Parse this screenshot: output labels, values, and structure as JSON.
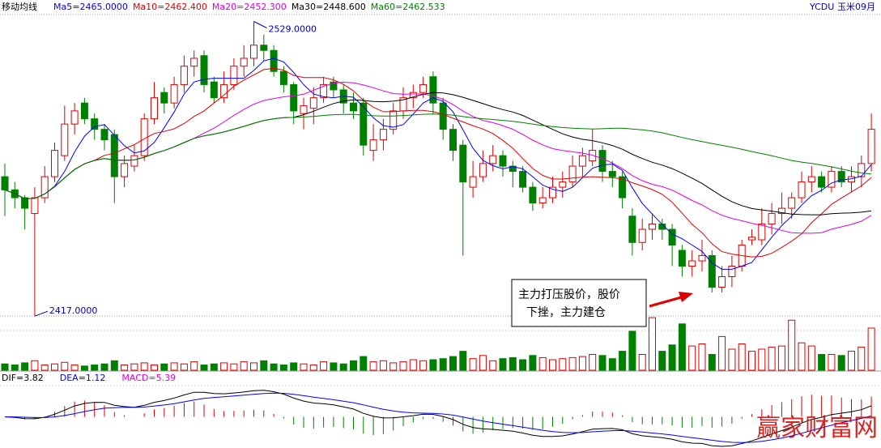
{
  "chart_data": {
    "type": "candlestick",
    "indicator_title": "移动均线",
    "ma_labels": [
      "Ma5=2465.0000",
      "Ma10=2462.400",
      "Ma20=2452.300",
      "Ma30=2448.600",
      "Ma60=2462.533"
    ],
    "ma_colors": [
      "#0000ff",
      "#e00000",
      "#e000e0",
      "#000000",
      "#008000"
    ],
    "symbol": "YCDU",
    "contract": "玉米09月",
    "high_label": "2529.0000",
    "low_label": "2417.0000",
    "annotation": [
      "主力打压股价，股价",
      "下挫，主力建仓"
    ],
    "macd_labels": [
      "DIF=3.82",
      "DEA=1.12",
      "MACD=5.39"
    ],
    "macd_colors": [
      "#000000",
      "#0000ff",
      "#e000e0"
    ],
    "watermark": "赢家财富网",
    "up_color": "#e00000",
    "down_color": "#008000",
    "ylim": [
      2414.6,
      2531
    ],
    "volume_ylim": [
      0,
      100
    ],
    "candles": [
      [
        2470,
        2475,
        2455,
        2465
      ],
      [
        2465,
        2468,
        2458,
        2462
      ],
      [
        2462,
        2463,
        2450,
        2458
      ],
      [
        2456,
        2466,
        2417,
        2462
      ],
      [
        2462,
        2474,
        2460,
        2470
      ],
      [
        2470,
        2483,
        2468,
        2480
      ],
      [
        2478,
        2497,
        2476,
        2490
      ],
      [
        2490,
        2498,
        2486,
        2495
      ],
      [
        2498,
        2500,
        2490,
        2492
      ],
      [
        2492,
        2494,
        2484,
        2488
      ],
      [
        2488,
        2490,
        2480,
        2484
      ],
      [
        2486,
        2488,
        2460,
        2470
      ],
      [
        2470,
        2478,
        2466,
        2475
      ],
      [
        2474,
        2482,
        2472,
        2478
      ],
      [
        2478,
        2494,
        2476,
        2492
      ],
      [
        2492,
        2506,
        2490,
        2500
      ],
      [
        2502,
        2504,
        2494,
        2498
      ],
      [
        2498,
        2508,
        2496,
        2505
      ],
      [
        2505,
        2516,
        2502,
        2512
      ],
      [
        2512,
        2518,
        2508,
        2515
      ],
      [
        2516,
        2518,
        2502,
        2505
      ],
      [
        2506,
        2508,
        2498,
        2500
      ],
      [
        2500,
        2510,
        2498,
        2505
      ],
      [
        2505,
        2515,
        2503,
        2512
      ],
      [
        2512,
        2520,
        2508,
        2515
      ],
      [
        2515,
        2529,
        2512,
        2520
      ],
      [
        2520,
        2524,
        2514,
        2518
      ],
      [
        2518,
        2520,
        2508,
        2510
      ],
      [
        2510,
        2512,
        2502,
        2505
      ],
      [
        2505,
        2506,
        2490,
        2495
      ],
      [
        2494,
        2500,
        2488,
        2497
      ],
      [
        2496,
        2504,
        2490,
        2500
      ],
      [
        2500,
        2508,
        2498,
        2505
      ],
      [
        2506,
        2508,
        2500,
        2503
      ],
      [
        2503,
        2505,
        2494,
        2498
      ],
      [
        2498,
        2502,
        2492,
        2495
      ],
      [
        2498,
        2500,
        2478,
        2482
      ],
      [
        2480,
        2490,
        2476,
        2484
      ],
      [
        2484,
        2492,
        2480,
        2488
      ],
      [
        2488,
        2498,
        2486,
        2495
      ],
      [
        2495,
        2504,
        2492,
        2500
      ],
      [
        2500,
        2505,
        2496,
        2502
      ],
      [
        2502,
        2508,
        2500,
        2505
      ],
      [
        2508,
        2510,
        2494,
        2498
      ],
      [
        2498,
        2500,
        2484,
        2488
      ],
      [
        2488,
        2490,
        2476,
        2480
      ],
      [
        2482,
        2484,
        2440,
        2468
      ],
      [
        2466,
        2476,
        2462,
        2470
      ],
      [
        2470,
        2480,
        2468,
        2475
      ],
      [
        2475,
        2482,
        2472,
        2478
      ],
      [
        2478,
        2480,
        2470,
        2474
      ],
      [
        2474,
        2476,
        2466,
        2472
      ],
      [
        2472,
        2474,
        2464,
        2466
      ],
      [
        2466,
        2468,
        2457,
        2460
      ],
      [
        2460,
        2466,
        2458,
        2462
      ],
      [
        2462,
        2470,
        2460,
        2466
      ],
      [
        2466,
        2472,
        2462,
        2468
      ],
      [
        2468,
        2478,
        2466,
        2474
      ],
      [
        2474,
        2481,
        2470,
        2478
      ],
      [
        2476,
        2488,
        2474,
        2480
      ],
      [
        2480,
        2482,
        2468,
        2472
      ],
      [
        2472,
        2476,
        2466,
        2470
      ],
      [
        2470,
        2472,
        2458,
        2462
      ],
      [
        2455,
        2458,
        2440,
        2445
      ],
      [
        2445,
        2454,
        2442,
        2450
      ],
      [
        2450,
        2456,
        2446,
        2452
      ],
      [
        2452,
        2454,
        2446,
        2450
      ],
      [
        2450,
        2452,
        2436,
        2444
      ],
      [
        2442,
        2444,
        2432,
        2436
      ],
      [
        2436,
        2442,
        2432,
        2438
      ],
      [
        2438,
        2446,
        2434,
        2440
      ],
      [
        2440,
        2442,
        2426,
        2428
      ],
      [
        2428,
        2436,
        2426,
        2432
      ],
      [
        2432,
        2440,
        2428,
        2436
      ],
      [
        2436,
        2446,
        2434,
        2444
      ],
      [
        2446,
        2450,
        2444,
        2447
      ],
      [
        2446,
        2458,
        2444,
        2452
      ],
      [
        2452,
        2460,
        2448,
        2456
      ],
      [
        2456,
        2464,
        2452,
        2458
      ],
      [
        2458,
        2464,
        2454,
        2462
      ],
      [
        2462,
        2472,
        2460,
        2468
      ],
      [
        2468,
        2474,
        2464,
        2470
      ],
      [
        2470,
        2472,
        2464,
        2466
      ],
      [
        2466,
        2474,
        2464,
        2472
      ],
      [
        2472,
        2474,
        2466,
        2468
      ],
      [
        2468,
        2474,
        2464,
        2470
      ],
      [
        2470,
        2478,
        2466,
        2475
      ],
      [
        2475,
        2494,
        2472,
        2488
      ]
    ],
    "volume": [
      12,
      10,
      14,
      18,
      10,
      12,
      15,
      10,
      8,
      10,
      12,
      18,
      10,
      12,
      14,
      10,
      12,
      14,
      12,
      16,
      10,
      12,
      14,
      12,
      16,
      14,
      18,
      12,
      10,
      14,
      12,
      10,
      16,
      14,
      12,
      18,
      26,
      16,
      18,
      14,
      16,
      20,
      18,
      20,
      22,
      26,
      36,
      22,
      28,
      18,
      22,
      24,
      20,
      28,
      24,
      20,
      22,
      24,
      26,
      30,
      28,
      22,
      36,
      74,
      30,
      100,
      36,
      48,
      88,
      46,
      50,
      30,
      64,
      40,
      50,
      36,
      40,
      44,
      46,
      95,
      52,
      46,
      30,
      30,
      28,
      36,
      44,
      80
    ]
  }
}
